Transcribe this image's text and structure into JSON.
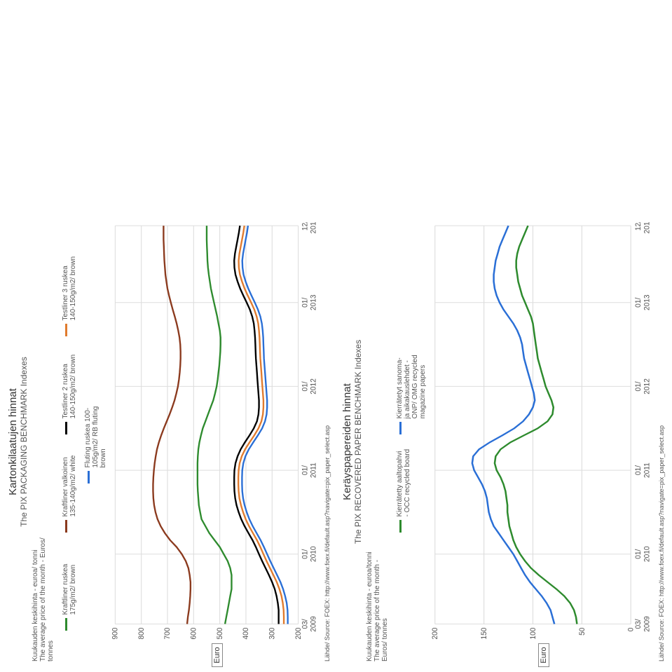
{
  "chart1": {
    "title1": "Kartonkilaatujen hinnat",
    "title2": "The PIX PACKAGING BENCHMARK Indexes",
    "subhead": "Kuukauden keskihinta - euroa/ tonni\nThe average price of the month - Euros/\ntonnes",
    "legend": [
      {
        "label": "Kraftliner ruskea 175g/m2/ brown",
        "color": "#2e8b2e"
      },
      {
        "label": "Kraftliner valkoinen 135-140g/m2/ white",
        "color": "#8b3a1e"
      },
      {
        "label": "Testliner 2 ruskea 140-150g/m2/ brown",
        "color": "#000000"
      },
      {
        "label": "Testliner 3 ruskea 140-150g/m2/ brown",
        "color": "#e07b2e"
      },
      {
        "label": "Fluting ruskea 100-105g/m2/ RB fluting brown",
        "color": "#2a6fd6"
      }
    ],
    "ylabel": "Euro",
    "ylim": [
      200,
      900
    ],
    "ystep": 100,
    "xticks": [
      "03/\n2009",
      "01/\n2010",
      "01/\n2011",
      "01/\n2012",
      "01/\n2013",
      "12/\n2013"
    ],
    "xvals": [
      0,
      10,
      22,
      34,
      46,
      57
    ],
    "n": 58,
    "series": [
      {
        "color": "#2e8b2e",
        "data": [
          480,
          475,
          470,
          465,
          460,
          455,
          455,
          455,
          460,
          470,
          485,
          500,
          520,
          540,
          555,
          570,
          575,
          580,
          582,
          584,
          585,
          585,
          585,
          585,
          584,
          582,
          578,
          572,
          565,
          555,
          545,
          535,
          525,
          518,
          512,
          508,
          505,
          502,
          500,
          498,
          497,
          497,
          500,
          505,
          510,
          516,
          522,
          528,
          534,
          538,
          542,
          545,
          547,
          548,
          549,
          550,
          550,
          550
        ]
      },
      {
        "color": "#8b3a1e",
        "data": [
          625,
          622,
          618,
          615,
          613,
          612,
          612,
          615,
          620,
          630,
          645,
          665,
          690,
          710,
          726,
          738,
          746,
          751,
          754,
          755,
          755,
          754,
          752,
          749,
          745,
          740,
          733,
          724,
          714,
          703,
          692,
          682,
          673,
          666,
          660,
          656,
          653,
          651,
          650,
          650,
          651,
          654,
          659,
          665,
          672,
          680,
          687,
          694,
          700,
          704,
          708,
          710,
          712,
          713,
          714,
          715,
          715,
          715
        ]
      },
      {
        "color": "#000000",
        "data": [
          275,
          275,
          275,
          278,
          283,
          290,
          300,
          312,
          325,
          338,
          350,
          362,
          375,
          390,
          405,
          418,
          428,
          436,
          441,
          444,
          445,
          445,
          444,
          440,
          432,
          420,
          404,
          386,
          370,
          358,
          352,
          350,
          350,
          352,
          354,
          356,
          358,
          360,
          362,
          363,
          364,
          365,
          367,
          370,
          376,
          385,
          397,
          410,
          422,
          432,
          440,
          444,
          445,
          442,
          437,
          432,
          427,
          423
        ]
      },
      {
        "color": "#e07b2e",
        "data": [
          255,
          255,
          256,
          259,
          264,
          272,
          282,
          295,
          308,
          321,
          333,
          345,
          358,
          373,
          388,
          401,
          411,
          419,
          425,
          428,
          429,
          429,
          428,
          424,
          416,
          403,
          386,
          368,
          352,
          341,
          335,
          333,
          333,
          335,
          337,
          339,
          341,
          343,
          345,
          346,
          347,
          348,
          350,
          353,
          359,
          368,
          380,
          393,
          405,
          415,
          423,
          427,
          428,
          425,
          420,
          415,
          410,
          406
        ]
      },
      {
        "color": "#2a6fd6",
        "data": [
          240,
          240,
          241,
          244,
          250,
          258,
          268,
          281,
          294,
          307,
          319,
          331,
          344,
          359,
          374,
          387,
          397,
          405,
          411,
          414,
          415,
          415,
          414,
          410,
          402,
          389,
          372,
          354,
          338,
          327,
          321,
          319,
          319,
          321,
          323,
          325,
          327,
          329,
          331,
          332,
          333,
          334,
          336,
          339,
          345,
          354,
          366,
          379,
          391,
          401,
          409,
          413,
          414,
          411,
          406,
          401,
          396,
          392
        ]
      }
    ],
    "source": "Lähde/ Source: FOEX: http://www.foex.fi/default.asp?navigate=pix_paper_select.asp"
  },
  "chart2": {
    "title1": "Keräyspapereiden hinnat",
    "title2": "The PIX RECOVERED PAPER BENCHMARK Indexes",
    "subhead": "Kuukauden keskihinta - euroa/tonni\nThe average price of the month -\nEuros/ tonnes",
    "legend": [
      {
        "label": "Kierrätetty aaltopahvi - OCC recycled board",
        "color": "#2e8b2e"
      },
      {
        "label": "Kierrätetyt sanoma- ja aikakauslehdet - ONP/ OMG recycled magazine papers",
        "color": "#2a6fd6"
      }
    ],
    "ylabel": "Euro",
    "ylim": [
      0,
      200
    ],
    "ystep": 50,
    "xticks": [
      "03/\n2009",
      "01/\n2010",
      "01/\n2011",
      "01/\n2012",
      "01/\n2013",
      "12/\n2013"
    ],
    "xvals": [
      0,
      10,
      22,
      34,
      46,
      57
    ],
    "n": 58,
    "series": [
      {
        "color": "#2e8b2e",
        "data": [
          55,
          56,
          58,
          62,
          68,
          76,
          85,
          94,
          102,
          108,
          113,
          117,
          120,
          122,
          124,
          125,
          126,
          126,
          127,
          128,
          130,
          133,
          137,
          139,
          138,
          133,
          123,
          109,
          95,
          85,
          80,
          79,
          81,
          84,
          87,
          89,
          91,
          93,
          95,
          96,
          97,
          98,
          99,
          100,
          102,
          105,
          108,
          111,
          113,
          115,
          116,
          117,
          117,
          116,
          114,
          111,
          108,
          105
        ]
      },
      {
        "color": "#2a6fd6",
        "data": [
          78,
          80,
          82,
          86,
          91,
          97,
          103,
          108,
          112,
          116,
          120,
          125,
          130,
          135,
          140,
          143,
          145,
          146,
          147,
          149,
          152,
          156,
          160,
          162,
          161,
          155,
          144,
          131,
          119,
          110,
          104,
          100,
          98,
          99,
          101,
          103,
          105,
          107,
          109,
          110,
          111,
          113,
          116,
          120,
          125,
          130,
          134,
          137,
          139,
          140,
          140,
          139,
          138,
          136,
          134,
          131,
          128,
          125
        ]
      }
    ],
    "source": "Lähde/ Source: FOEX: http://www.foex.fi/default.asp?navigate=pix_paper_select.asp"
  }
}
